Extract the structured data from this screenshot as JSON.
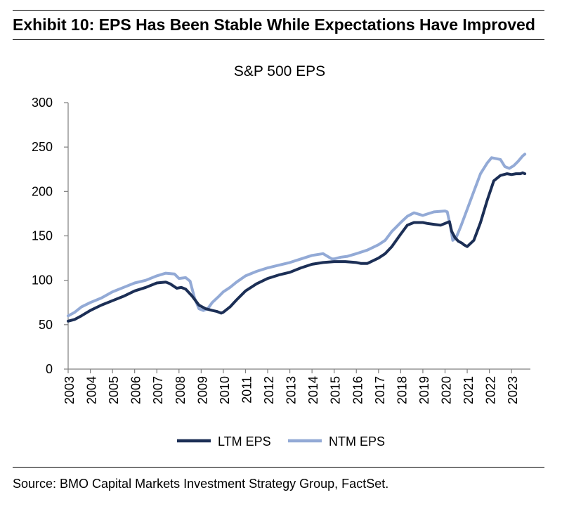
{
  "header": {
    "title": "Exhibit 10: EPS Has Been Stable While Expectations Have Improved"
  },
  "footer": {
    "source": "Source: BMO Capital Markets Investment Strategy Group, FactSet."
  },
  "colors": {
    "ltm": "#1c2f56",
    "ntm": "#93aad6",
    "axis": "#7f7f7f"
  },
  "chart_data": {
    "type": "line",
    "title": "S&P 500 EPS",
    "xlabel": "",
    "ylabel": "",
    "ylim": [
      0,
      300
    ],
    "xlim": [
      2003.0,
      2023.85
    ],
    "yticks": [
      0,
      50,
      100,
      150,
      200,
      250,
      300
    ],
    "ytick_labels": [
      "0",
      "50",
      "100",
      "150",
      "200",
      "250",
      "300"
    ],
    "xtick_labels": [
      "2003",
      "2004",
      "2005",
      "2006",
      "2007",
      "2008",
      "2009",
      "2010",
      "2011",
      "2012",
      "2013",
      "2014",
      "2015",
      "2016",
      "2017",
      "2018",
      "2019",
      "2020",
      "2021",
      "2022",
      "2023"
    ],
    "legend": {
      "position": "bottom-center",
      "entries": [
        "LTM EPS",
        "NTM EPS"
      ]
    },
    "series": [
      {
        "name": "LTM EPS",
        "x": [
          2003.0,
          2003.3,
          2003.6,
          2004.0,
          2004.5,
          2005.0,
          2005.5,
          2006.0,
          2006.5,
          2007.0,
          2007.4,
          2007.6,
          2007.9,
          2008.1,
          2008.3,
          2008.6,
          2008.9,
          2009.2,
          2009.5,
          2009.7,
          2009.9,
          2010.0,
          2010.3,
          2010.6,
          2011.0,
          2011.5,
          2012.0,
          2012.5,
          2013.0,
          2013.5,
          2014.0,
          2014.5,
          2015.0,
          2015.5,
          2016.0,
          2016.2,
          2016.5,
          2017.0,
          2017.3,
          2017.6,
          2018.0,
          2018.3,
          2018.6,
          2019.0,
          2019.2,
          2019.5,
          2019.8,
          2020.0,
          2020.2,
          2020.3,
          2020.45,
          2020.6,
          2020.75,
          2020.85,
          2021.0,
          2021.3,
          2021.6,
          2021.9,
          2022.2,
          2022.5,
          2022.8,
          2023.0,
          2023.2,
          2023.4,
          2023.5,
          2023.6
        ],
        "values": [
          54,
          56,
          60,
          66,
          72,
          77,
          82,
          88,
          92,
          97,
          98,
          96,
          91,
          92,
          90,
          82,
          72,
          68,
          66,
          65,
          63,
          64,
          70,
          78,
          88,
          96,
          102,
          106,
          109,
          114,
          118,
          120,
          121,
          121,
          120,
          119,
          119,
          125,
          130,
          138,
          152,
          162,
          165,
          165,
          164,
          163,
          162,
          164,
          166,
          155,
          148,
          144,
          142,
          140,
          138,
          145,
          165,
          190,
          212,
          218,
          220,
          219,
          220,
          220,
          221,
          220
        ]
      },
      {
        "name": "NTM EPS",
        "x": [
          2003.0,
          2003.3,
          2003.6,
          2004.0,
          2004.5,
          2005.0,
          2005.5,
          2006.0,
          2006.5,
          2007.0,
          2007.4,
          2007.8,
          2008.0,
          2008.3,
          2008.5,
          2008.7,
          2008.9,
          2009.1,
          2009.3,
          2009.5,
          2009.8,
          2010.0,
          2010.3,
          2010.6,
          2011.0,
          2011.5,
          2012.0,
          2012.5,
          2013.0,
          2013.5,
          2014.0,
          2014.5,
          2014.7,
          2014.9,
          2015.0,
          2015.3,
          2015.6,
          2016.0,
          2016.5,
          2017.0,
          2017.3,
          2017.6,
          2017.8,
          2018.0,
          2018.3,
          2018.6,
          2019.0,
          2019.5,
          2020.0,
          2020.1,
          2020.25,
          2020.35,
          2020.5,
          2020.7,
          2021.0,
          2021.3,
          2021.6,
          2021.9,
          2022.1,
          2022.3,
          2022.5,
          2022.7,
          2022.9,
          2023.1,
          2023.3,
          2023.5,
          2023.6
        ],
        "values": [
          60,
          64,
          70,
          75,
          80,
          87,
          92,
          97,
          100,
          105,
          108,
          107,
          102,
          103,
          99,
          80,
          68,
          66,
          68,
          75,
          82,
          87,
          92,
          98,
          105,
          110,
          114,
          117,
          120,
          124,
          128,
          130,
          127,
          124,
          124,
          126,
          127,
          130,
          134,
          140,
          145,
          155,
          160,
          165,
          172,
          176,
          173,
          177,
          178,
          177,
          160,
          145,
          148,
          160,
          180,
          200,
          220,
          232,
          238,
          237,
          236,
          228,
          226,
          229,
          234,
          240,
          242
        ]
      }
    ]
  }
}
